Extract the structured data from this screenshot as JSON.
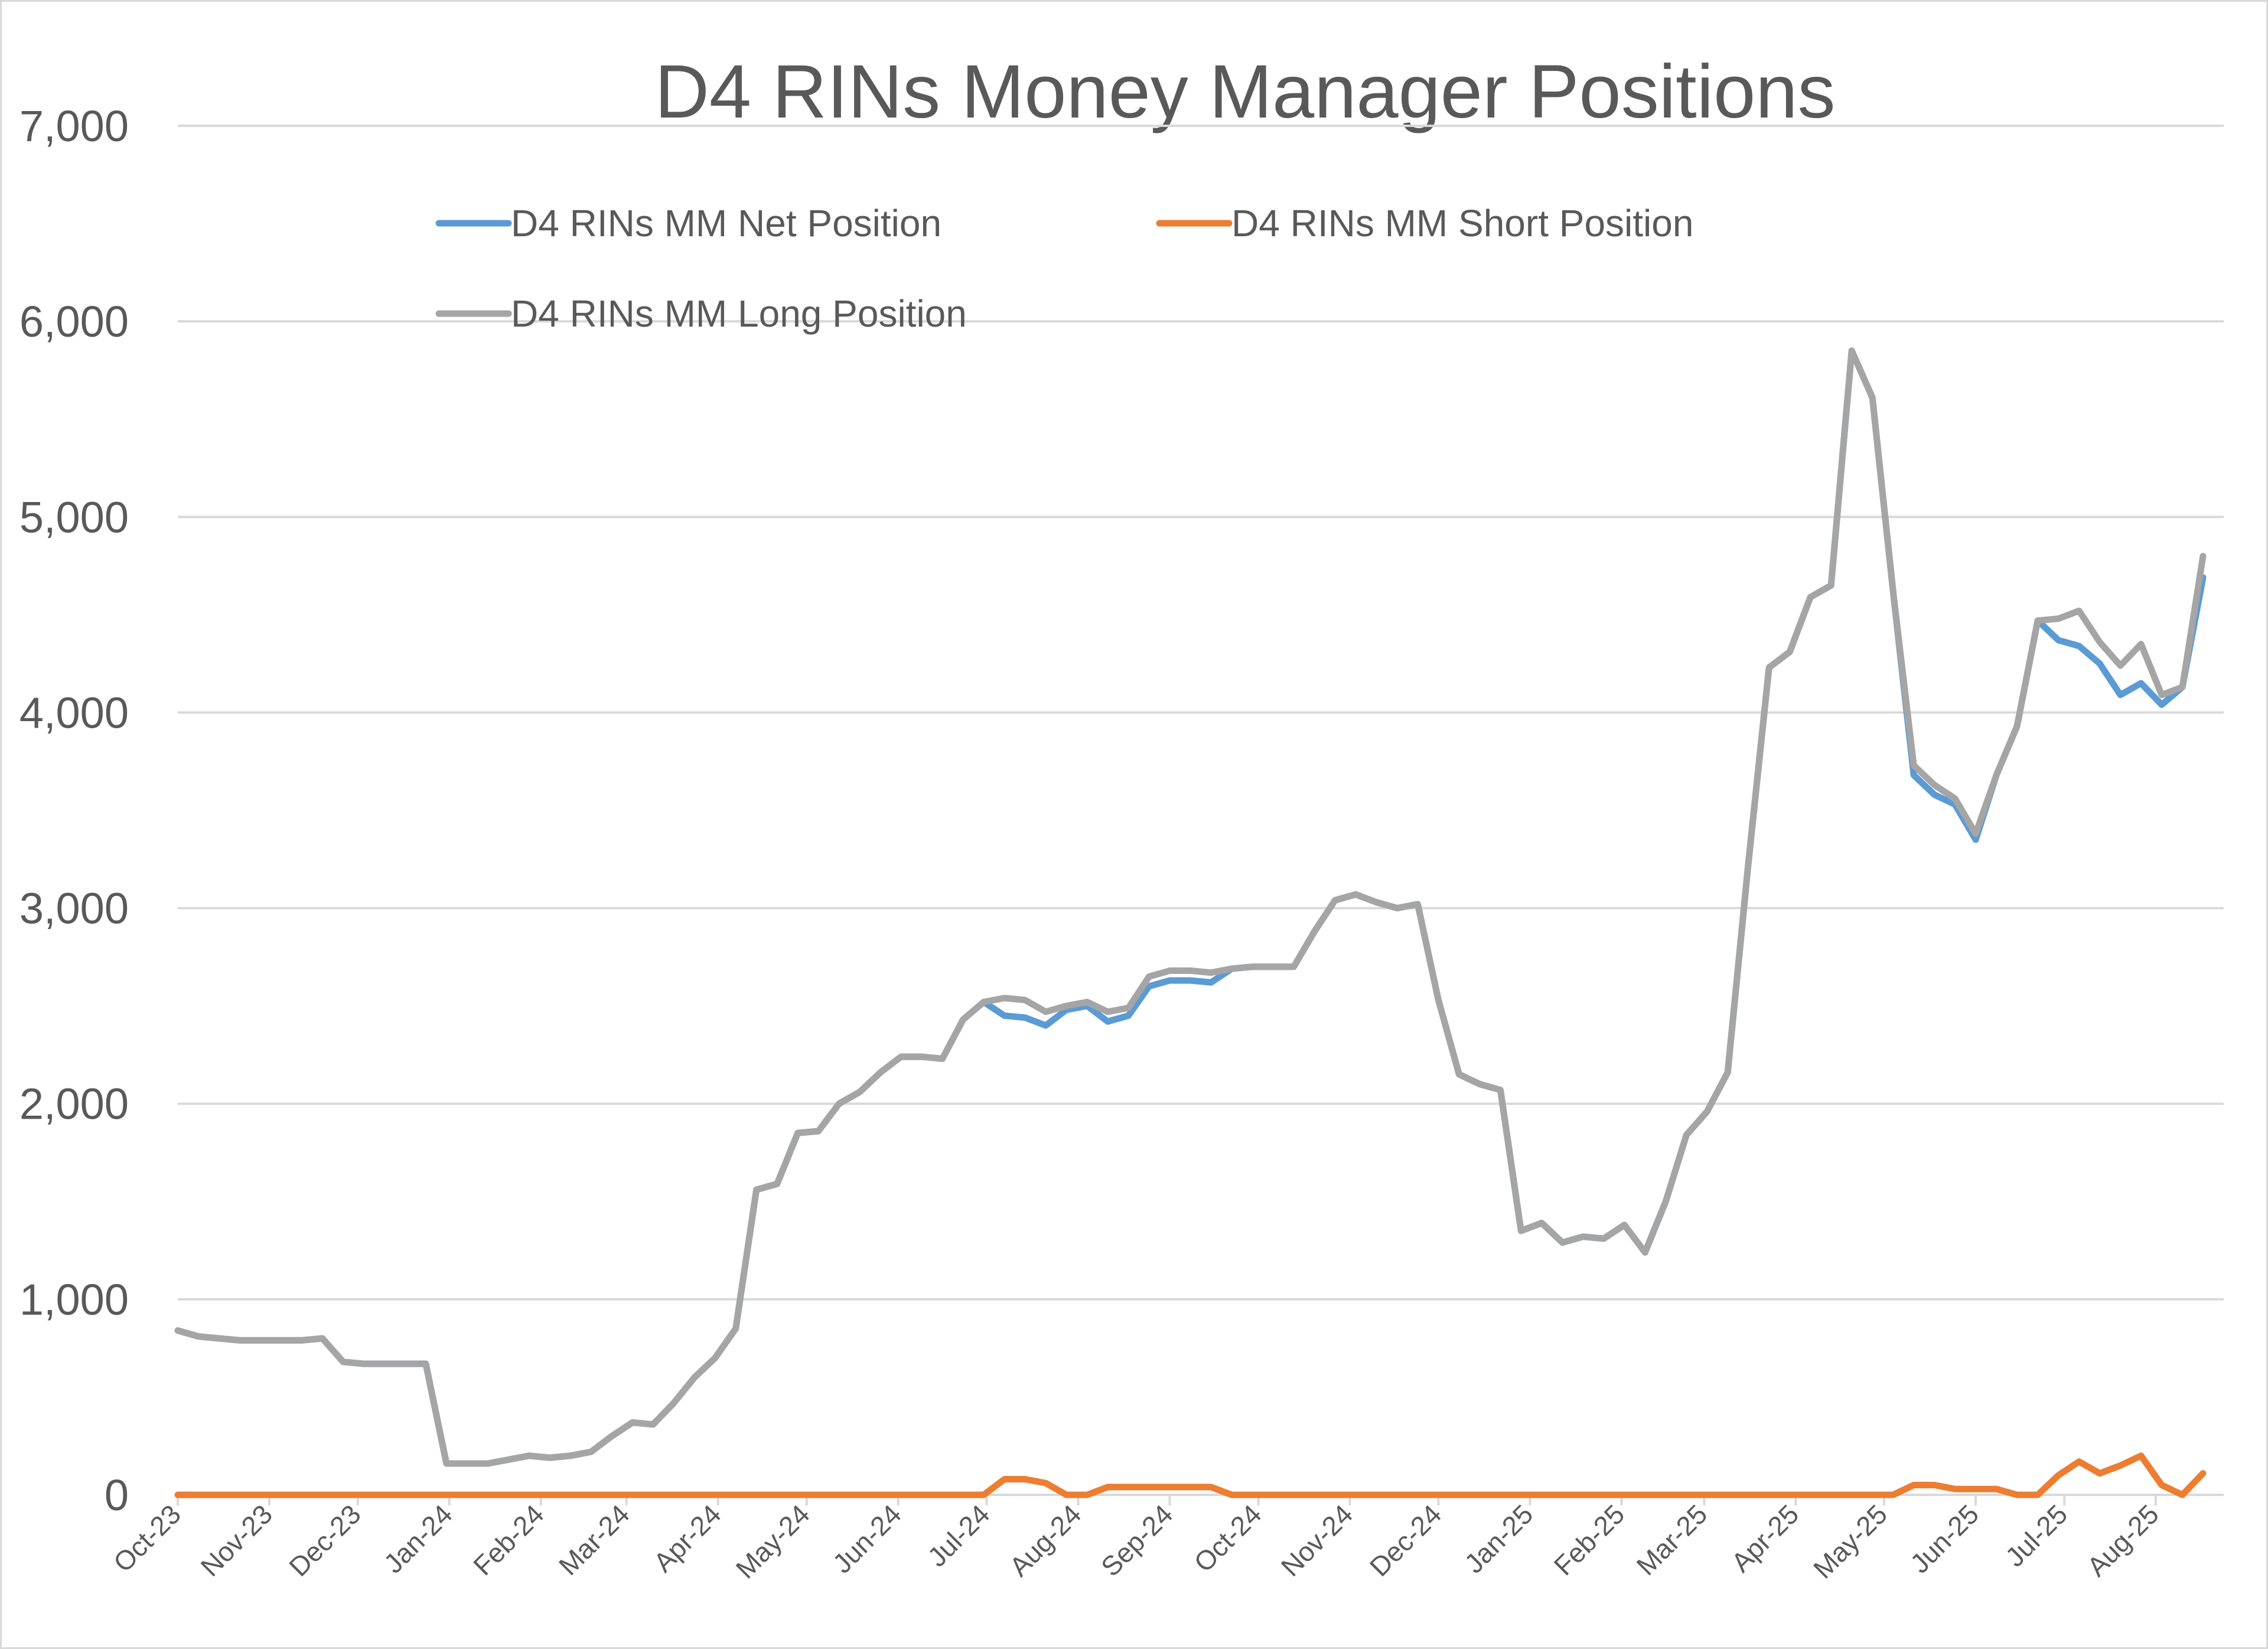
{
  "chart_data": {
    "type": "line",
    "title": "D4 RINs Money Manager Positions",
    "xlabel": "",
    "ylabel": "",
    "ylim": [
      0,
      7000
    ],
    "yticks": [
      0,
      1000,
      2000,
      3000,
      4000,
      5000,
      6000,
      7000
    ],
    "ytick_labels": [
      "0",
      "1,000",
      "2,000",
      "3,000",
      "4,000",
      "5,000",
      "6,000",
      "7,000"
    ],
    "grid": true,
    "legend_position": "top",
    "x_ticks": [
      {
        "label": "Oct-23",
        "x": 0
      },
      {
        "label": "Nov-23",
        "x": 4.43
      },
      {
        "label": "Dec-23",
        "x": 8.71
      },
      {
        "label": "Jan-24",
        "x": 13.14
      },
      {
        "label": "Feb-24",
        "x": 17.57
      },
      {
        "label": "Mar-24",
        "x": 21.71
      },
      {
        "label": "Apr-24",
        "x": 26.14
      },
      {
        "label": "May-24",
        "x": 30.43
      },
      {
        "label": "Jun-24",
        "x": 34.86
      },
      {
        "label": "Jul-24",
        "x": 39.14
      },
      {
        "label": "Aug-24",
        "x": 43.57
      },
      {
        "label": "Sep-24",
        "x": 48.0
      },
      {
        "label": "Oct-24",
        "x": 52.29
      },
      {
        "label": "Nov-24",
        "x": 56.71
      },
      {
        "label": "Dec-24",
        "x": 61.0
      },
      {
        "label": "Jan-25",
        "x": 65.43
      },
      {
        "label": "Feb-25",
        "x": 69.86
      },
      {
        "label": "Mar-25",
        "x": 73.86
      },
      {
        "label": "Apr-25",
        "x": 78.29
      },
      {
        "label": "May-25",
        "x": 82.57
      },
      {
        "label": "Jun-25",
        "x": 87.0
      },
      {
        "label": "Jul-25",
        "x": 91.29
      },
      {
        "label": "Aug-25",
        "x": 95.71
      }
    ],
    "x_max": 99,
    "series": [
      {
        "name": "D4 RINs MM Net Position",
        "color": "#5b9bd5",
        "values": [
          840,
          810,
          800,
          790,
          790,
          790,
          790,
          800,
          680,
          670,
          670,
          670,
          670,
          160,
          160,
          160,
          180,
          200,
          190,
          200,
          220,
          300,
          370,
          360,
          470,
          600,
          700,
          850,
          1560,
          1590,
          1850,
          1860,
          2000,
          2060,
          2160,
          2240,
          2240,
          2230,
          2430,
          2520,
          2450,
          2440,
          2400,
          2480,
          2500,
          2420,
          2450,
          2600,
          2630,
          2630,
          2620,
          2690,
          2700,
          2700,
          2700,
          2880,
          3040,
          3070,
          3030,
          3000,
          3020,
          2530,
          2150,
          2100,
          2070,
          1350,
          1390,
          1290,
          1320,
          1310,
          1380,
          1240,
          1500,
          1840,
          1960,
          2160,
          3230,
          4230,
          4310,
          4590,
          4650,
          5850,
          5610,
          4620,
          3680,
          3580,
          3530,
          3350,
          3680,
          3930,
          4470,
          4370,
          4340,
          4250,
          4090,
          4150,
          4040,
          4130,
          4690
        ]
      },
      {
        "name": "D4 RINs MM Short Position",
        "color": "#ed7d31",
        "values": [
          0,
          0,
          0,
          0,
          0,
          0,
          0,
          0,
          0,
          0,
          0,
          0,
          0,
          0,
          0,
          0,
          0,
          0,
          0,
          0,
          0,
          0,
          0,
          0,
          0,
          0,
          0,
          0,
          0,
          0,
          0,
          0,
          0,
          0,
          0,
          0,
          0,
          0,
          0,
          0,
          80,
          80,
          60,
          0,
          0,
          40,
          40,
          40,
          40,
          40,
          40,
          0,
          0,
          0,
          0,
          0,
          0,
          0,
          0,
          0,
          0,
          0,
          0,
          0,
          0,
          0,
          0,
          0,
          0,
          0,
          0,
          0,
          0,
          0,
          0,
          0,
          0,
          0,
          0,
          0,
          0,
          0,
          0,
          0,
          50,
          50,
          30,
          30,
          30,
          0,
          0,
          100,
          170,
          110,
          150,
          200,
          50,
          0,
          110
        ]
      },
      {
        "name": "D4 RINs MM Long Position",
        "color": "#a5a5a5",
        "values": [
          840,
          810,
          800,
          790,
          790,
          790,
          790,
          800,
          680,
          670,
          670,
          670,
          670,
          160,
          160,
          160,
          180,
          200,
          190,
          200,
          220,
          300,
          370,
          360,
          470,
          600,
          700,
          850,
          1560,
          1590,
          1850,
          1860,
          2000,
          2060,
          2160,
          2240,
          2240,
          2230,
          2430,
          2520,
          2540,
          2530,
          2470,
          2500,
          2520,
          2470,
          2490,
          2650,
          2680,
          2680,
          2670,
          2690,
          2700,
          2700,
          2700,
          2880,
          3040,
          3070,
          3030,
          3000,
          3020,
          2530,
          2150,
          2100,
          2070,
          1350,
          1390,
          1290,
          1320,
          1310,
          1380,
          1240,
          1500,
          1840,
          1960,
          2160,
          3230,
          4230,
          4310,
          4590,
          4650,
          5850,
          5610,
          4620,
          3730,
          3630,
          3560,
          3380,
          3680,
          3930,
          4470,
          4480,
          4520,
          4360,
          4240,
          4350,
          4090,
          4130,
          4800
        ]
      }
    ]
  }
}
